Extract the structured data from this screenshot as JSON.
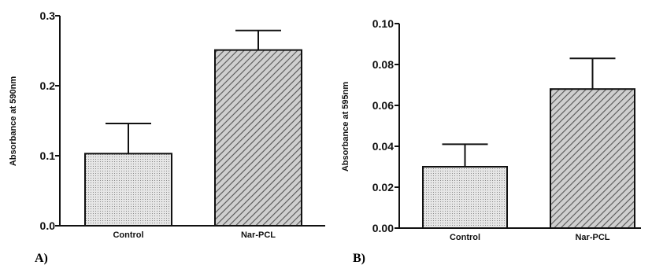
{
  "chart_data": [
    {
      "type": "bar",
      "panel_label": "A)",
      "categories": [
        "Control",
        "Nar-PCL"
      ],
      "values": [
        0.103,
        0.251
      ],
      "errors": [
        0.043,
        0.028
      ],
      "ylabel": "Absorbance at 590nm",
      "xlabel": "",
      "ylim": [
        0,
        0.3
      ],
      "yticks": [
        "0.0",
        "0.1",
        "0.2",
        "0.3"
      ],
      "bar_patterns": [
        "dots",
        "diagonal-hatch"
      ],
      "grid": false
    },
    {
      "type": "bar",
      "panel_label": "B)",
      "categories": [
        "Control",
        "Nar-PCL"
      ],
      "values": [
        0.03,
        0.068
      ],
      "errors": [
        0.011,
        0.015
      ],
      "ylabel": "Absorbance at 595nm",
      "xlabel": "",
      "ylim": [
        0,
        0.1
      ],
      "yticks": [
        "0.00",
        "0.02",
        "0.04",
        "0.06",
        "0.08",
        "0.10"
      ],
      "bar_patterns": [
        "dots",
        "diagonal-hatch"
      ],
      "grid": false
    }
  ],
  "colors": {
    "axis": "#111111",
    "dot_fill": "#e6e6e6",
    "dot": "#888888",
    "hatch_fill": "#cfcfcf",
    "hatch": "#555555"
  }
}
